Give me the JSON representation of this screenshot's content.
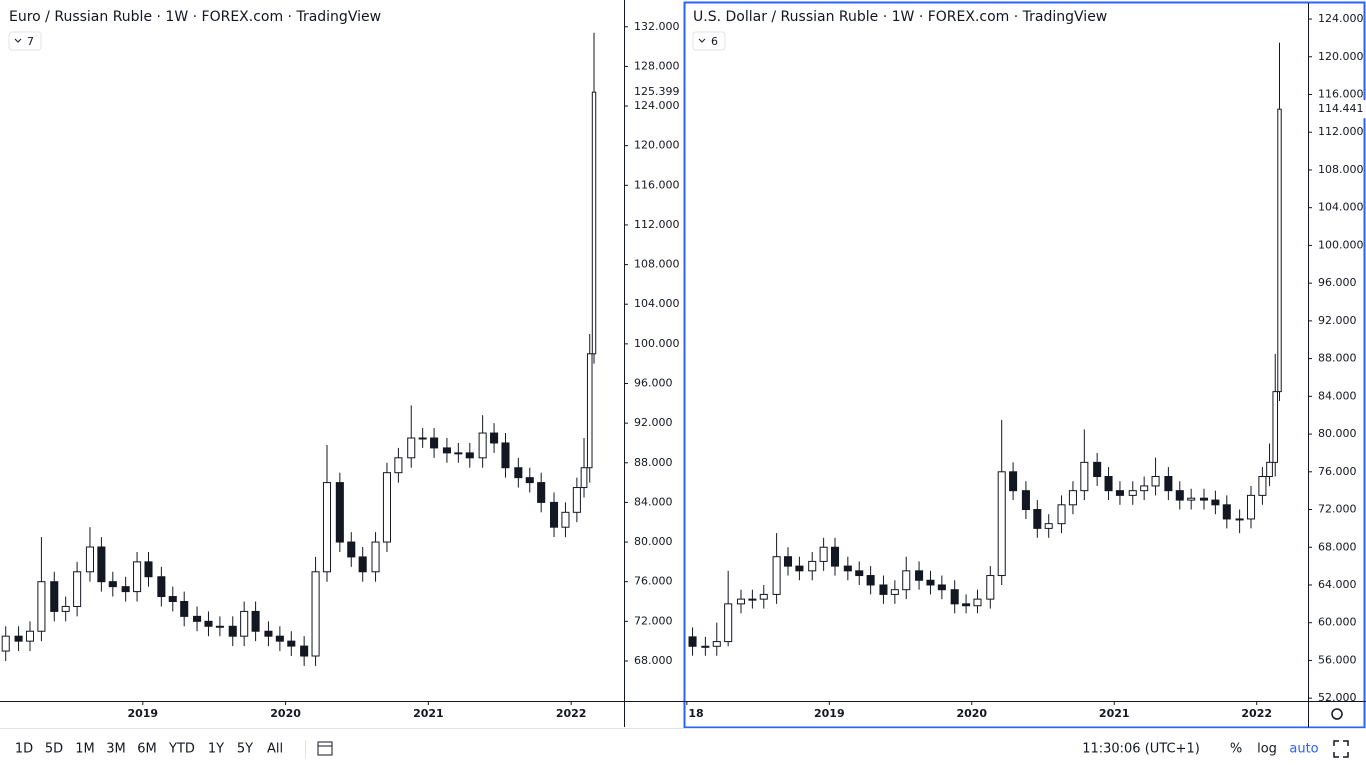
{
  "chart_data": [
    {
      "type": "candlestick",
      "title": "Euro / Russian Ruble · 1W · FOREX.com · TradingView",
      "indicator_count": 7,
      "color": "#131722",
      "x": [
        2018.04,
        2018.13,
        2018.21,
        2018.29,
        2018.38,
        2018.46,
        2018.54,
        2018.63,
        2018.71,
        2018.79,
        2018.88,
        2018.96,
        2019.04,
        2019.13,
        2019.21,
        2019.29,
        2019.38,
        2019.46,
        2019.54,
        2019.63,
        2019.71,
        2019.79,
        2019.88,
        2019.96,
        2020.04,
        2020.13,
        2020.21,
        2020.29,
        2020.38,
        2020.46,
        2020.54,
        2020.63,
        2020.71,
        2020.79,
        2020.88,
        2020.96,
        2021.04,
        2021.13,
        2021.21,
        2021.29,
        2021.38,
        2021.46,
        2021.54,
        2021.63,
        2021.71,
        2021.79,
        2021.88,
        2021.96,
        2022.04,
        2022.09,
        2022.13,
        2022.16
      ],
      "open": [
        69,
        70.5,
        70,
        71,
        76,
        73,
        73.5,
        77,
        79.5,
        76,
        75.5,
        75,
        78,
        76.5,
        74.5,
        74,
        72.5,
        72,
        71.5,
        71.5,
        70.5,
        73,
        71,
        70.5,
        70,
        69.5,
        68.5,
        77,
        86,
        80,
        78.5,
        77,
        80,
        87,
        88.5,
        90.5,
        90.5,
        89.5,
        89,
        89,
        88.5,
        91,
        90,
        87.5,
        86.5,
        86,
        84,
        81.5,
        83,
        85.5,
        87.5,
        99
      ],
      "high": [
        71.5,
        71.5,
        72,
        80.5,
        77,
        74.5,
        78,
        81.5,
        80.5,
        77,
        76.5,
        79,
        79,
        77.5,
        75.5,
        75,
        73.5,
        73,
        72.5,
        72.5,
        74,
        74,
        72,
        71.5,
        71,
        70.5,
        78.5,
        89.8,
        87,
        81,
        79.5,
        81,
        88,
        89.5,
        93.8,
        91.5,
        91.5,
        90.5,
        90,
        90,
        92.8,
        92,
        91,
        88.5,
        87.5,
        87,
        85,
        84,
        86.5,
        90.5,
        101,
        131.4
      ],
      "low": [
        68,
        69,
        69,
        70,
        72,
        72,
        72.5,
        76,
        75,
        74.5,
        74,
        74,
        75.5,
        73.5,
        73,
        71.5,
        71,
        70.5,
        70.5,
        69.5,
        69.5,
        70,
        69.5,
        69,
        68.5,
        67.5,
        67.5,
        76,
        79,
        77.5,
        76,
        76,
        79,
        86,
        87.5,
        89.5,
        88.5,
        88,
        88,
        87.5,
        87.5,
        89,
        86.5,
        85.5,
        85,
        83,
        80.5,
        80.5,
        82,
        84.5,
        86,
        98
      ],
      "close": [
        70.5,
        70,
        71,
        76,
        73,
        73.5,
        77,
        79.5,
        76,
        75.5,
        75,
        78,
        76.5,
        74.5,
        74,
        72.5,
        72,
        71.5,
        71.5,
        70.5,
        73,
        71,
        70.5,
        70,
        69.5,
        68.5,
        77,
        86,
        80,
        78.5,
        77,
        80,
        87,
        88.5,
        90.5,
        90.5,
        89.5,
        89,
        89,
        88.5,
        91,
        90,
        87.5,
        86.5,
        86,
        84,
        81.5,
        83,
        85.5,
        87.5,
        99,
        125.399
      ],
      "last_price": 125.399,
      "xlim": [
        2018.0,
        2022.37
      ],
      "xticks": [
        2019,
        2020,
        2021,
        2022
      ],
      "ylim": [
        63.96,
        134.7
      ],
      "yticks": [
        {
          "value": 68,
          "label": "68.000"
        },
        {
          "value": 72,
          "label": "72.000"
        },
        {
          "value": 76,
          "label": "76.000"
        },
        {
          "value": 80,
          "label": "80.000"
        },
        {
          "value": 84,
          "label": "84.000"
        },
        {
          "value": 88,
          "label": "88.000"
        },
        {
          "value": 92,
          "label": "92.000"
        },
        {
          "value": 96,
          "label": "96.000"
        },
        {
          "value": 100,
          "label": "100.000"
        },
        {
          "value": 104,
          "label": "104.000"
        },
        {
          "value": 108,
          "label": "108.000"
        },
        {
          "value": 112,
          "label": "112.000"
        },
        {
          "value": 116,
          "label": "116.000"
        },
        {
          "value": 120,
          "label": "120.000"
        },
        {
          "value": 124,
          "label": "124.000"
        },
        {
          "value": 128,
          "label": "128.000"
        },
        {
          "value": 132,
          "label": "132.000"
        }
      ]
    },
    {
      "type": "candlestick",
      "title": "U.S. Dollar / Russian Ruble · 1W · FOREX.com · TradingView",
      "indicator_count": 6,
      "color": "#131722",
      "x": [
        2018.04,
        2018.13,
        2018.21,
        2018.29,
        2018.38,
        2018.46,
        2018.54,
        2018.63,
        2018.71,
        2018.79,
        2018.88,
        2018.96,
        2019.04,
        2019.13,
        2019.21,
        2019.29,
        2019.38,
        2019.46,
        2019.54,
        2019.63,
        2019.71,
        2019.79,
        2019.88,
        2019.96,
        2020.04,
        2020.13,
        2020.21,
        2020.29,
        2020.38,
        2020.46,
        2020.54,
        2020.63,
        2020.71,
        2020.79,
        2020.88,
        2020.96,
        2021.04,
        2021.13,
        2021.21,
        2021.29,
        2021.38,
        2021.46,
        2021.54,
        2021.63,
        2021.71,
        2021.79,
        2021.88,
        2021.96,
        2022.04,
        2022.09,
        2022.13,
        2022.16
      ],
      "open": [
        58.5,
        57.5,
        57.5,
        58,
        62,
        62.5,
        62.5,
        63,
        67,
        66,
        65.5,
        66.5,
        68,
        66,
        65.5,
        65,
        64,
        63,
        63.5,
        65.5,
        64.5,
        64,
        63.5,
        62,
        61.8,
        62.5,
        65,
        76,
        74,
        72,
        70,
        70.5,
        72.5,
        74,
        77,
        75.5,
        74,
        73.5,
        74,
        74.5,
        75.5,
        74,
        73,
        73.2,
        73,
        72.5,
        71,
        71,
        73.5,
        75.5,
        77,
        84.5
      ],
      "high": [
        59.5,
        58.5,
        60,
        65.5,
        63.5,
        63.5,
        64,
        69.5,
        68,
        67,
        67.5,
        69,
        69,
        67,
        66.5,
        66,
        65,
        64.5,
        67,
        66.5,
        65.5,
        65,
        64.5,
        63,
        63.5,
        66,
        81.5,
        77,
        75,
        73,
        71.5,
        73.5,
        75,
        80.5,
        78,
        76.5,
        75,
        75,
        75.5,
        77.5,
        76.5,
        75,
        74.2,
        74.2,
        74,
        73.5,
        72,
        74.5,
        76.5,
        79,
        88.5,
        121.5
      ],
      "low": [
        56.5,
        56.5,
        56.5,
        57.5,
        61,
        61.5,
        61.5,
        62,
        65,
        64.5,
        64.5,
        65.5,
        65,
        64.5,
        64,
        63,
        62,
        62,
        62.5,
        63.5,
        63,
        62.5,
        61,
        61,
        61,
        61.5,
        64,
        73,
        71,
        69,
        69,
        69.5,
        71.5,
        73,
        74.5,
        73,
        72.5,
        72.5,
        73,
        73.5,
        73,
        72,
        72,
        72,
        71.5,
        70,
        69.5,
        70,
        72.5,
        74.5,
        75.5,
        83.5
      ],
      "close": [
        57.5,
        57.5,
        58,
        62,
        62.5,
        62.5,
        63,
        67,
        66,
        65.5,
        66.5,
        68,
        66,
        65.5,
        65,
        64,
        63,
        63.5,
        65.5,
        64.5,
        64,
        63.5,
        62,
        61.8,
        62.5,
        65,
        76,
        74,
        72,
        70,
        70.5,
        72.5,
        74,
        77,
        75.5,
        74,
        73.5,
        74,
        74.5,
        75.5,
        74,
        73,
        73.2,
        73,
        72.5,
        71,
        71,
        73.5,
        75.5,
        77,
        84.5,
        114.441
      ],
      "last_price": 114.441,
      "xlim": [
        2017.98,
        2022.36
      ],
      "xticks": [
        {
          "value": 2018,
          "label": "18"
        },
        2019,
        2020,
        2021,
        2022
      ],
      "ylim": [
        51.7,
        125.7
      ],
      "yticks": [
        {
          "value": 52,
          "label": "52.000"
        },
        {
          "value": 56,
          "label": "56.000"
        },
        {
          "value": 60,
          "label": "60.000"
        },
        {
          "value": 64,
          "label": "64.000"
        },
        {
          "value": 68,
          "label": "68.000"
        },
        {
          "value": 72,
          "label": "72.000"
        },
        {
          "value": 76,
          "label": "76.000"
        },
        {
          "value": 80,
          "label": "80.000"
        },
        {
          "value": 84,
          "label": "84.000"
        },
        {
          "value": 88,
          "label": "88.000"
        },
        {
          "value": 92,
          "label": "92.000"
        },
        {
          "value": 96,
          "label": "96.000"
        },
        {
          "value": 100,
          "label": "100.000"
        },
        {
          "value": 104,
          "label": "104.000"
        },
        {
          "value": 108,
          "label": "108.000"
        },
        {
          "value": 112,
          "label": "112.000"
        },
        {
          "value": 116,
          "label": "116.000"
        },
        {
          "value": 120,
          "label": "120.000"
        },
        {
          "value": 124,
          "label": "124.000"
        }
      ]
    }
  ],
  "toolbar": {
    "ranges": [
      "1D",
      "5D",
      "1M",
      "3M",
      "6M",
      "YTD",
      "1Y",
      "5Y",
      "All"
    ],
    "time": "11:30:06 (UTC+1)",
    "options": [
      "%",
      "log",
      "auto"
    ]
  }
}
